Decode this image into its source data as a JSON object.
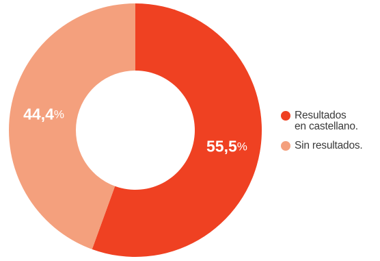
{
  "chart_data": {
    "type": "pie",
    "style": "donut",
    "slices": [
      {
        "name": "Resultados en castellano.",
        "value": 55.5,
        "label_number": "55,5",
        "label_unit": "%",
        "color": "#EF4122"
      },
      {
        "name": "Sin resultados.",
        "value": 44.4,
        "label_number": "44,4",
        "label_unit": "%",
        "color": "#F4A07D"
      }
    ],
    "legend_position": "right",
    "legend": [
      {
        "label": "Resultados\nen castellano.",
        "color": "#EF4122"
      },
      {
        "label": "Sin resultados.",
        "color": "#F4A07D"
      }
    ]
  }
}
